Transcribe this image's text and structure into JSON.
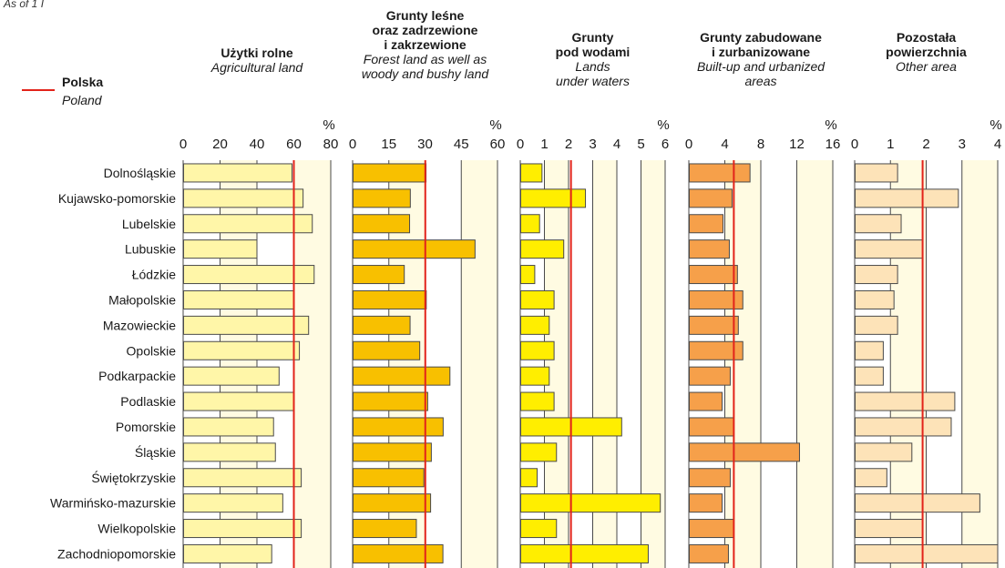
{
  "note": "As of  1 I",
  "legend": {
    "label_pl": "Polska",
    "label_en": "Poland",
    "color": "#e2231a"
  },
  "chart_data": [
    {
      "type": "bar",
      "orientation": "horizontal",
      "title_pl": "Użytki rolne",
      "title_en": "Agricultural land",
      "unit": "%",
      "categories": [
        "Dolnośląskie",
        "Kujawsko-pomorskie",
        "Lubelskie",
        "Lubuskie",
        "Łódzkie",
        "Małopolskie",
        "Mazowieckie",
        "Opolskie",
        "Podkarpackie",
        "Podlaskie",
        "Pomorskie",
        "Śląskie",
        "Świętokrzyskie",
        "Warmińsko-mazurskie",
        "Wielkopolskie",
        "Zachodniopomorskie"
      ],
      "values": [
        59,
        65,
        70,
        40,
        71,
        60,
        68,
        63,
        52,
        60,
        49,
        50,
        64,
        54,
        64,
        48
      ],
      "poland": 60,
      "xlim": [
        0,
        80
      ],
      "ticks": [
        "0",
        "20",
        "40",
        "60",
        "80"
      ],
      "color": "#fff6a8",
      "grid": true
    },
    {
      "type": "bar",
      "orientation": "horizontal",
      "title_pl": "Grunty leśne\noraz zadrzewione\ni zakrzewione",
      "title_en": "Forest land as well as\nwoody and bushy land",
      "unit": "%",
      "categories": [
        "Dolnośląskie",
        "Kujawsko-pomorskie",
        "Lubelskie",
        "Lubuskie",
        "Łódzkie",
        "Małopolskie",
        "Mazowieckie",
        "Opolskie",
        "Podkarpackie",
        "Podlaskie",
        "Pomorskie",
        "Śląskie",
        "Świętokrzyskie",
        "Warmińsko-mazurskie",
        "Wielkopolskie",
        "Zachodniopomorskie"
      ],
      "values": [
        30.4,
        23.9,
        23.6,
        50.7,
        21.4,
        30.5,
        23.8,
        27.8,
        40.3,
        31.1,
        37.5,
        32.6,
        29.5,
        32.3,
        26.4,
        37.4
      ],
      "poland": 30.1,
      "xlim": [
        0,
        60
      ],
      "ticks": [
        "0",
        "15",
        "30",
        "45",
        "60"
      ],
      "color": "#f8c000",
      "grid": true
    },
    {
      "type": "bar",
      "orientation": "horizontal",
      "title_pl": "Grunty\npod wodami",
      "title_en": "Lands\nunder waters",
      "unit": "%",
      "categories": [
        "Dolnośląskie",
        "Kujawsko-pomorskie",
        "Lubelskie",
        "Lubuskie",
        "Łódzkie",
        "Małopolskie",
        "Mazowieckie",
        "Opolskie",
        "Podkarpackie",
        "Podlaskie",
        "Pomorskie",
        "Śląskie",
        "Świętokrzyskie",
        "Warmińsko-mazurskie",
        "Wielkopolskie",
        "Zachodniopomorskie"
      ],
      "values": [
        0.9,
        2.7,
        0.8,
        1.8,
        0.6,
        1.4,
        1.2,
        1.4,
        1.2,
        1.4,
        4.2,
        1.5,
        0.7,
        5.8,
        1.5,
        5.3
      ],
      "poland": 2.1,
      "xlim": [
        0,
        6
      ],
      "ticks": [
        "0",
        "1",
        "2",
        "3",
        "4",
        "5",
        "6"
      ],
      "color": "#ffee00",
      "grid": true
    },
    {
      "type": "bar",
      "orientation": "horizontal",
      "title_pl": "Grunty zabudowane\ni zurbanizowane",
      "title_en": "Built-up and urbanized\nareas",
      "unit": "%",
      "categories": [
        "Dolnośląskie",
        "Kujawsko-pomorskie",
        "Lubelskie",
        "Lubuskie",
        "Łódzkie",
        "Małopolskie",
        "Mazowieckie",
        "Opolskie",
        "Podkarpackie",
        "Podlaskie",
        "Pomorskie",
        "Śląskie",
        "Świętokrzyskie",
        "Warmińsko-mazurskie",
        "Wielkopolskie",
        "Zachodniopomorskie"
      ],
      "values": [
        6.8,
        4.8,
        3.8,
        4.5,
        5.4,
        6.0,
        5.5,
        6.0,
        4.6,
        3.7,
        5.0,
        12.3,
        4.6,
        3.7,
        5.0,
        4.4
      ],
      "poland": 5.0,
      "xlim": [
        0,
        16
      ],
      "ticks": [
        "0",
        "4",
        "8",
        "12",
        "16"
      ],
      "color": "#f6a04a",
      "grid": true
    },
    {
      "type": "bar",
      "orientation": "horizontal",
      "title_pl": "Pozostała\npowierzchnia",
      "title_en": "Other area",
      "unit": "%",
      "categories": [
        "Dolnośląskie",
        "Kujawsko-pomorskie",
        "Lubelskie",
        "Lubuskie",
        "Łódzkie",
        "Małopolskie",
        "Mazowieckie",
        "Opolskie",
        "Podkarpackie",
        "Podlaskie",
        "Pomorskie",
        "Śląskie",
        "Świętokrzyskie",
        "Warmińsko-mazurskie",
        "Wielkopolskie",
        "Zachodniopomorskie"
      ],
      "values": [
        1.2,
        2.9,
        1.3,
        1.9,
        1.2,
        1.1,
        1.2,
        0.8,
        0.8,
        2.8,
        2.7,
        1.6,
        0.9,
        3.5,
        1.9,
        4.0
      ],
      "poland": 1.9,
      "xlim": [
        0,
        4
      ],
      "ticks": [
        "0",
        "1",
        "2",
        "3",
        "4"
      ],
      "color": "#fde3b8",
      "grid": true
    }
  ]
}
